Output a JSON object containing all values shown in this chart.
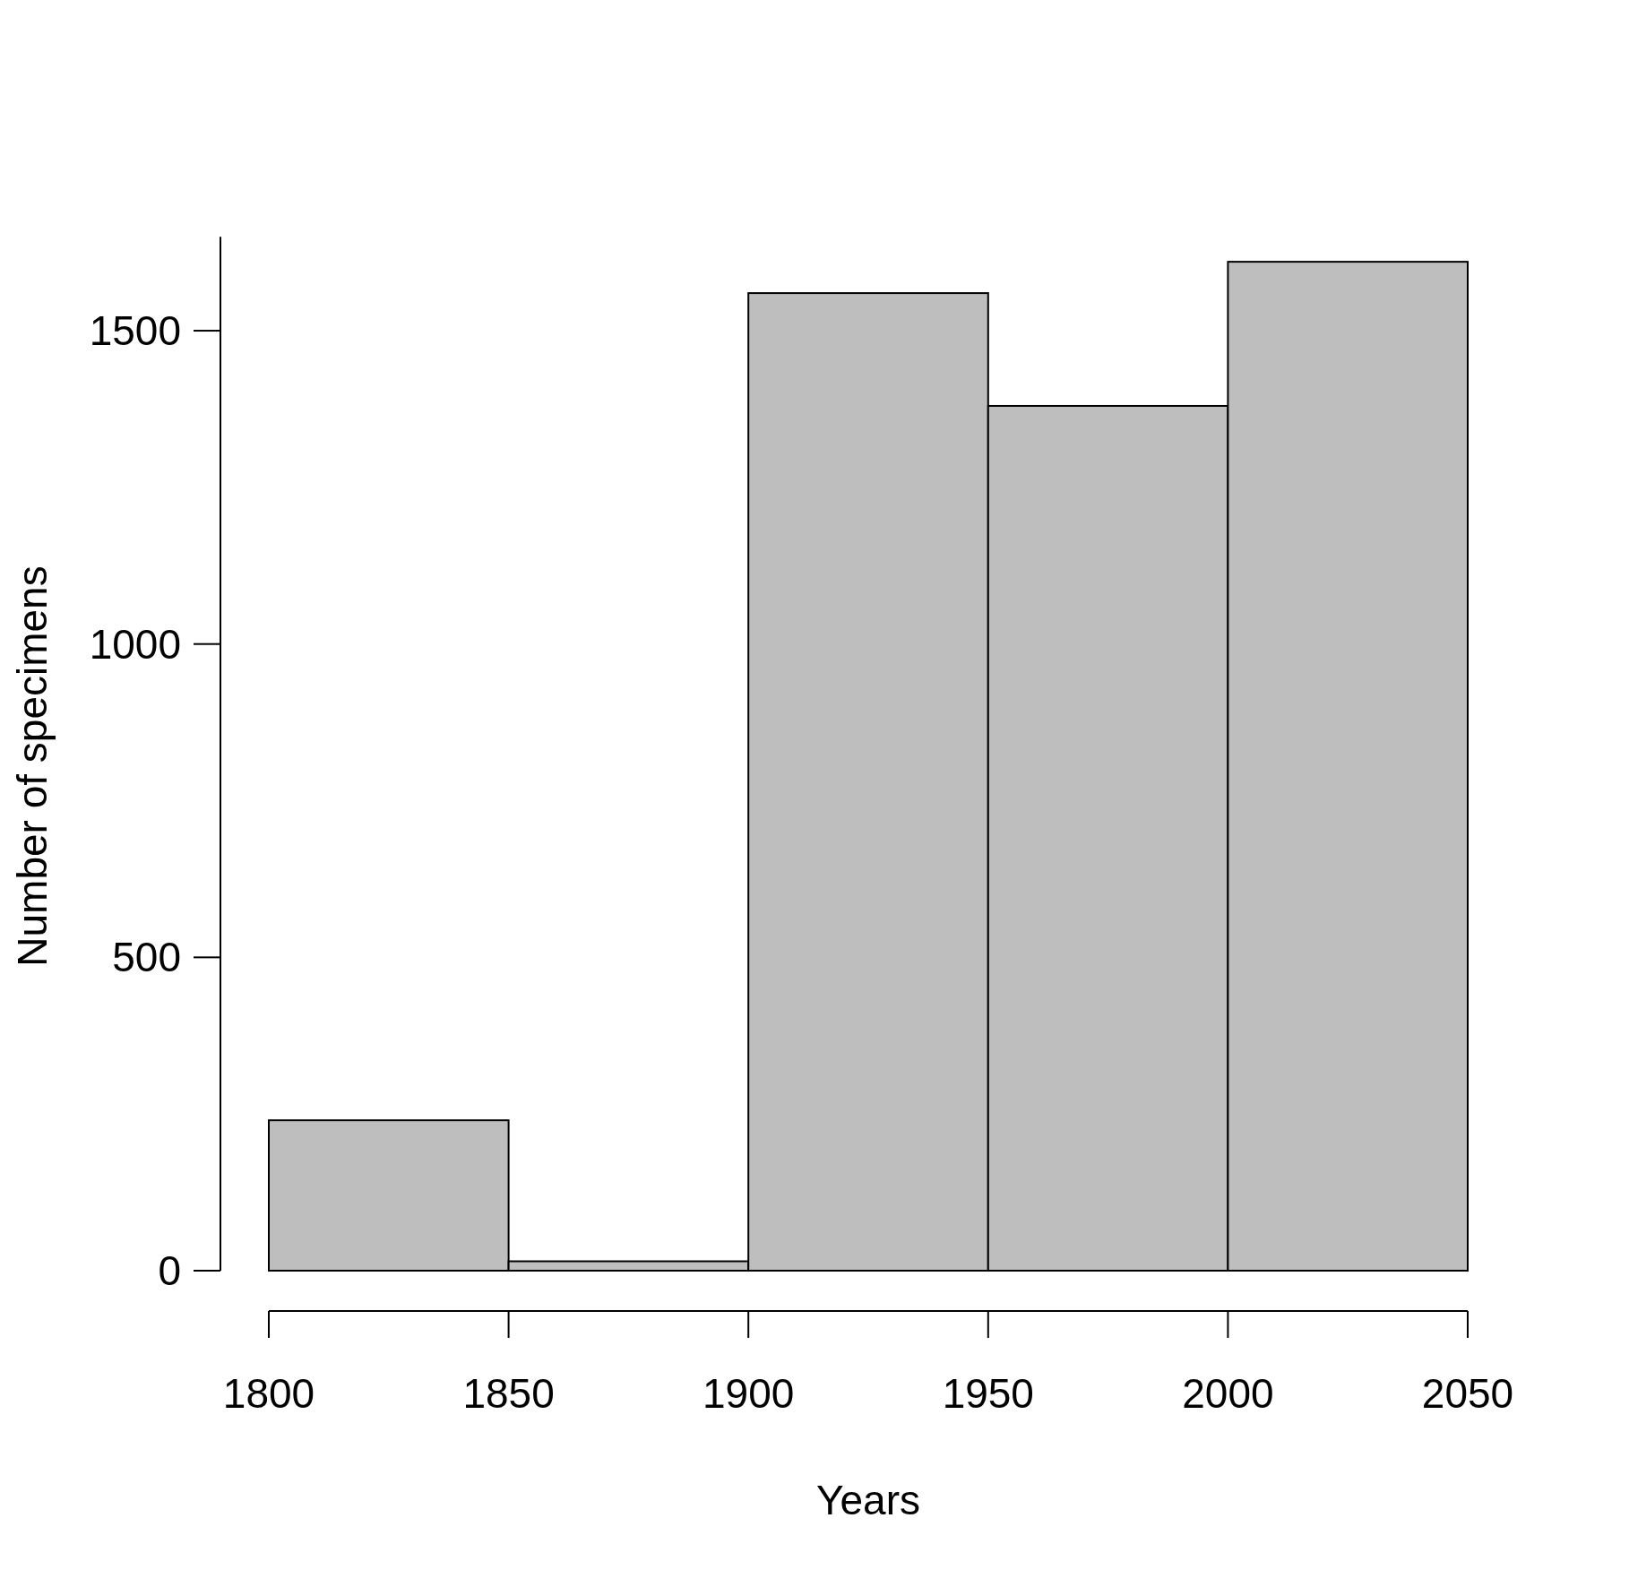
{
  "chart_data": {
    "type": "histogram",
    "xlabel": "Years",
    "ylabel": "Number of specimens",
    "bins": [
      1800,
      1850,
      1900,
      1950,
      2000,
      2050
    ],
    "values": [
      240,
      15,
      1560,
      1380,
      1610
    ],
    "color": "#bebebe",
    "xlim": [
      1800,
      2050
    ],
    "xticks": [
      1800,
      1850,
      1900,
      1950,
      2000,
      2050
    ],
    "ylim": [
      0,
      1650
    ],
    "yticks": [
      0,
      500,
      1000,
      1500
    ],
    "grid": false
  }
}
